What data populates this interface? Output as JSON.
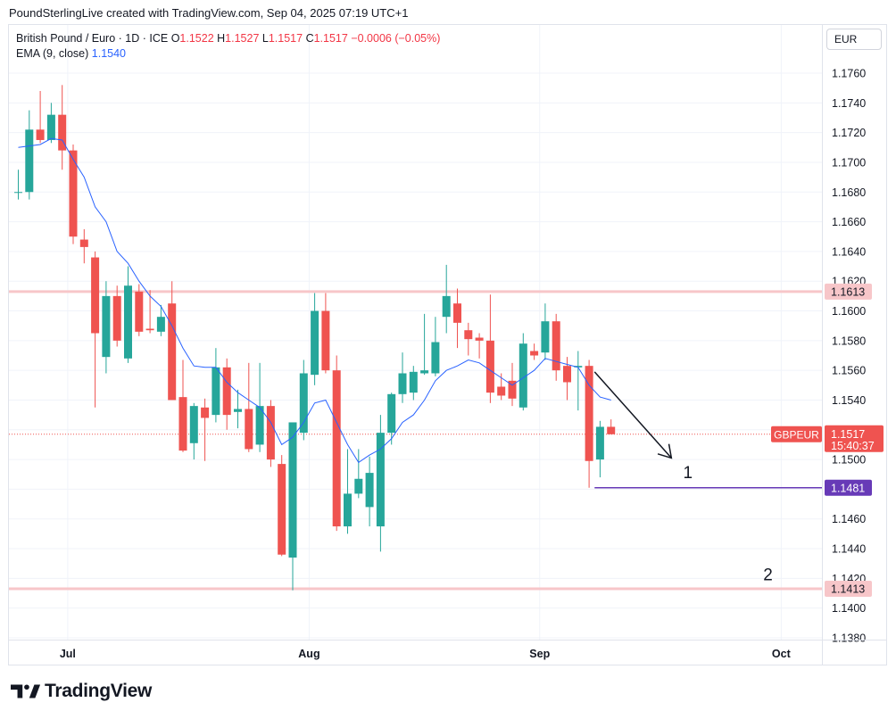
{
  "header": {
    "caption": "PoundSterlingLive created with TradingView.com, Sep 04, 2025 07:19 UTC+1"
  },
  "legend": {
    "symbol": "British Pound / Euro · 1D · ICE",
    "open_label": "O",
    "open": "1.1522",
    "high_label": "H",
    "high": "1.1527",
    "low_label": "L",
    "low": "1.1517",
    "close_label": "C",
    "close": "1.1517",
    "change": "−0.0006 (−0.05%)",
    "ema_label": "EMA (9, close)",
    "ema_value": "1.1540"
  },
  "currency": "EUR",
  "brand": {
    "name": "TradingView"
  },
  "colors": {
    "up": "#26a69a",
    "down": "#ef5350",
    "ema": "#2962ff",
    "resistance": "#f7c6c9",
    "target_line": "#673ab7",
    "grid": "#f0f3fa"
  },
  "chart_data": {
    "type": "candlestick",
    "y_axis": {
      "min": 1.138,
      "max": 1.177,
      "ticks": [
        "1.1760",
        "1.1740",
        "1.1720",
        "1.1700",
        "1.1680",
        "1.1660",
        "1.1640",
        "1.1620",
        "1.1600",
        "1.1580",
        "1.1560",
        "1.1540",
        "1.1520",
        "1.1500",
        "1.1480",
        "1.1460",
        "1.1440",
        "1.1420",
        "1.1400",
        "1.1380"
      ]
    },
    "x_axis": {
      "labels": [
        {
          "label": "Jul",
          "index": 4.5
        },
        {
          "label": "Aug",
          "index": 26.5
        },
        {
          "label": "Sep",
          "index": 47.5
        },
        {
          "label": "Oct",
          "index": 69.5
        }
      ]
    },
    "candles": [
      {
        "o": 1.168,
        "h": 1.1695,
        "l": 1.1675,
        "c": 1.168
      },
      {
        "o": 1.168,
        "h": 1.1735,
        "l": 1.1675,
        "c": 1.1722
      },
      {
        "o": 1.1722,
        "h": 1.1748,
        "l": 1.1713,
        "c": 1.1715
      },
      {
        "o": 1.1715,
        "h": 1.174,
        "l": 1.1713,
        "c": 1.1732
      },
      {
        "o": 1.1732,
        "h": 1.1752,
        "l": 1.1695,
        "c": 1.1708
      },
      {
        "o": 1.1708,
        "h": 1.1712,
        "l": 1.1645,
        "c": 1.165
      },
      {
        "o": 1.1648,
        "h": 1.1655,
        "l": 1.1632,
        "c": 1.1643
      },
      {
        "o": 1.1636,
        "h": 1.164,
        "l": 1.1535,
        "c": 1.1585
      },
      {
        "o": 1.1569,
        "h": 1.162,
        "l": 1.1558,
        "c": 1.161
      },
      {
        "o": 1.161,
        "h": 1.1617,
        "l": 1.1576,
        "c": 1.158
      },
      {
        "o": 1.1568,
        "h": 1.163,
        "l": 1.1565,
        "c": 1.1617
      },
      {
        "o": 1.1613,
        "h": 1.1618,
        "l": 1.1583,
        "c": 1.1586
      },
      {
        "o": 1.1588,
        "h": 1.1614,
        "l": 1.1585,
        "c": 1.1587
      },
      {
        "o": 1.1586,
        "h": 1.1604,
        "l": 1.1583,
        "c": 1.1596
      },
      {
        "o": 1.1605,
        "h": 1.162,
        "l": 1.154,
        "c": 1.154
      },
      {
        "o": 1.1542,
        "h": 1.1567,
        "l": 1.1505,
        "c": 1.1506
      },
      {
        "o": 1.1511,
        "h": 1.1538,
        "l": 1.15,
        "c": 1.1536
      },
      {
        "o": 1.1535,
        "h": 1.1541,
        "l": 1.1499,
        "c": 1.1528
      },
      {
        "o": 1.153,
        "h": 1.1575,
        "l": 1.1525,
        "c": 1.1562
      },
      {
        "o": 1.1562,
        "h": 1.1568,
        "l": 1.152,
        "c": 1.153
      },
      {
        "o": 1.1532,
        "h": 1.1547,
        "l": 1.1521,
        "c": 1.1534
      },
      {
        "o": 1.1534,
        "h": 1.1565,
        "l": 1.1505,
        "c": 1.1507
      },
      {
        "o": 1.151,
        "h": 1.1565,
        "l": 1.1505,
        "c": 1.1536
      },
      {
        "o": 1.1536,
        "h": 1.154,
        "l": 1.1495,
        "c": 1.15
      },
      {
        "o": 1.1497,
        "h": 1.1503,
        "l": 1.1435,
        "c": 1.1436
      },
      {
        "o": 1.1434,
        "h": 1.1525,
        "l": 1.1412,
        "c": 1.1525
      },
      {
        "o": 1.1518,
        "h": 1.1567,
        "l": 1.1513,
        "c": 1.1558
      },
      {
        "o": 1.1557,
        "h": 1.1612,
        "l": 1.155,
        "c": 1.16
      },
      {
        "o": 1.16,
        "h": 1.1612,
        "l": 1.1558,
        "c": 1.156
      },
      {
        "o": 1.156,
        "h": 1.157,
        "l": 1.1452,
        "c": 1.1455
      },
      {
        "o": 1.1455,
        "h": 1.1507,
        "l": 1.145,
        "c": 1.1477
      },
      {
        "o": 1.1477,
        "h": 1.1507,
        "l": 1.1474,
        "c": 1.1487
      },
      {
        "o": 1.1468,
        "h": 1.1502,
        "l": 1.1455,
        "c": 1.1491
      },
      {
        "o": 1.1455,
        "h": 1.153,
        "l": 1.1438,
        "c": 1.1518
      },
      {
        "o": 1.1518,
        "h": 1.1545,
        "l": 1.151,
        "c": 1.1544
      },
      {
        "o": 1.1544,
        "h": 1.1572,
        "l": 1.1538,
        "c": 1.1558
      },
      {
        "o": 1.1545,
        "h": 1.1563,
        "l": 1.154,
        "c": 1.1559
      },
      {
        "o": 1.1558,
        "h": 1.1598,
        "l": 1.1557,
        "c": 1.156
      },
      {
        "o": 1.1558,
        "h": 1.1596,
        "l": 1.1556,
        "c": 1.1579
      },
      {
        "o": 1.1596,
        "h": 1.1631,
        "l": 1.1585,
        "c": 1.161
      },
      {
        "o": 1.1605,
        "h": 1.1615,
        "l": 1.1575,
        "c": 1.1592
      },
      {
        "o": 1.1587,
        "h": 1.1592,
        "l": 1.157,
        "c": 1.1581
      },
      {
        "o": 1.1582,
        "h": 1.1585,
        "l": 1.1568,
        "c": 1.158
      },
      {
        "o": 1.158,
        "h": 1.1611,
        "l": 1.1538,
        "c": 1.1545
      },
      {
        "o": 1.1549,
        "h": 1.1558,
        "l": 1.154,
        "c": 1.1543
      },
      {
        "o": 1.1553,
        "h": 1.1565,
        "l": 1.1536,
        "c": 1.1541
      },
      {
        "o": 1.1535,
        "h": 1.1585,
        "l": 1.1533,
        "c": 1.1578
      },
      {
        "o": 1.1573,
        "h": 1.1578,
        "l": 1.1567,
        "c": 1.157
      },
      {
        "o": 1.1572,
        "h": 1.1605,
        "l": 1.1567,
        "c": 1.1593
      },
      {
        "o": 1.1593,
        "h": 1.1598,
        "l": 1.1553,
        "c": 1.156
      },
      {
        "o": 1.1563,
        "h": 1.1569,
        "l": 1.154,
        "c": 1.1552
      },
      {
        "o": 1.1562,
        "h": 1.1573,
        "l": 1.1533,
        "c": 1.1563
      },
      {
        "o": 1.1563,
        "h": 1.1567,
        "l": 1.1481,
        "c": 1.1499
      },
      {
        "o": 1.15,
        "h": 1.1526,
        "l": 1.1488,
        "c": 1.1522
      },
      {
        "o": 1.1522,
        "h": 1.1527,
        "l": 1.1517,
        "c": 1.1517
      }
    ],
    "ema": {
      "name": "EMA (9, close)",
      "values": [
        1.171,
        1.1711,
        1.1712,
        1.1716,
        1.1715,
        1.1702,
        1.169,
        1.167,
        1.166,
        1.164,
        1.1632,
        1.162,
        1.161,
        1.1603,
        1.159,
        1.1575,
        1.1563,
        1.1562,
        1.1562,
        1.1552,
        1.1545,
        1.154,
        1.1535,
        1.1525,
        1.151,
        1.1515,
        1.1525,
        1.1538,
        1.154,
        1.1525,
        1.151,
        1.1498,
        1.1503,
        1.1507,
        1.1514,
        1.1525,
        1.153,
        1.154,
        1.1553,
        1.156,
        1.1563,
        1.1567,
        1.1565,
        1.156,
        1.1555,
        1.155,
        1.1555,
        1.156,
        1.1568,
        1.1566,
        1.1564,
        1.1562,
        1.155,
        1.1542,
        1.154
      ]
    },
    "horizontal_lines": [
      {
        "name": "resistance",
        "value": 1.1613,
        "label": "1.1613"
      },
      {
        "name": "target-1",
        "value": 1.1481,
        "label": "1.1481"
      },
      {
        "name": "support-2",
        "value": 1.1413,
        "label": "1.1413"
      }
    ],
    "last_price": {
      "symbol": "GBPEUR",
      "value": "1.1517",
      "countdown": "15:40:37"
    },
    "annotations": [
      {
        "text": "1",
        "near_value": 1.149
      },
      {
        "text": "2",
        "near_value": 1.1421
      }
    ],
    "arrow": {
      "from_index": 52.5,
      "from_value": 1.1559,
      "to_index": 59.5,
      "to_value": 1.1501
    }
  }
}
